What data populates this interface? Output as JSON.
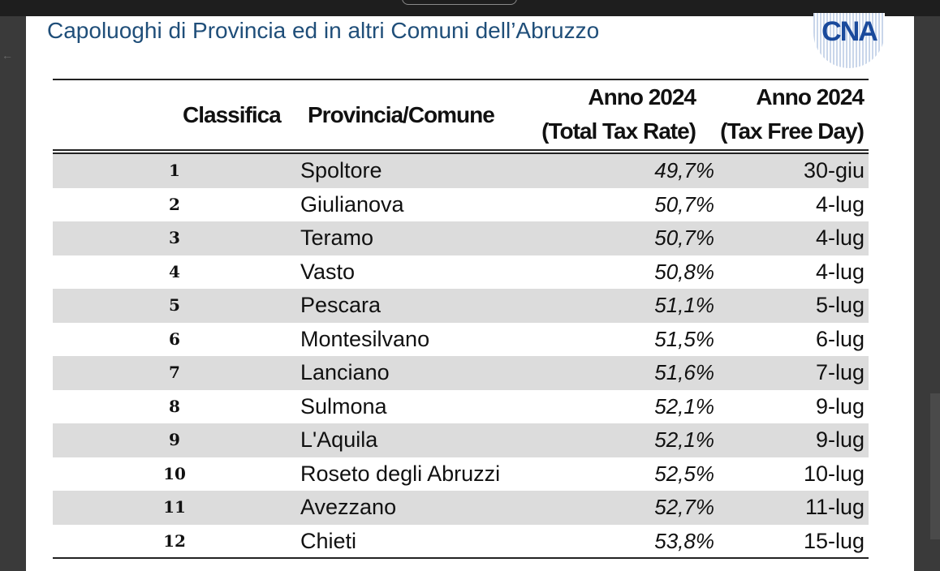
{
  "title": "Capoluoghi di Provincia ed in altri Comuni dell’Abruzzo",
  "logo_text": "CNA",
  "headers": {
    "rank": "Classifica",
    "name": "Provincia/Comune",
    "rate_line1": "Anno 2024",
    "rate_line2": "(Total Tax Rate)",
    "day_line1": "Anno 2024",
    "day_line2": "(Tax Free Day)"
  },
  "rows": [
    {
      "rank": "1",
      "name": "Spoltore",
      "rate": "49,7%",
      "day": "30-giu"
    },
    {
      "rank": "2",
      "name": "Giulianova",
      "rate": "50,7%",
      "day": "4-lug"
    },
    {
      "rank": "3",
      "name": "Teramo",
      "rate": "50,7%",
      "day": "4-lug"
    },
    {
      "rank": "4",
      "name": "Vasto",
      "rate": "50,8%",
      "day": "4-lug"
    },
    {
      "rank": "5",
      "name": "Pescara",
      "rate": "51,1%",
      "day": "5-lug"
    },
    {
      "rank": "6",
      "name": "Montesilvano",
      "rate": "51,5%",
      "day": "6-lug"
    },
    {
      "rank": "7",
      "name": "Lanciano",
      "rate": "51,6%",
      "day": "7-lug"
    },
    {
      "rank": "8",
      "name": "Sulmona",
      "rate": "52,1%",
      "day": "9-lug"
    },
    {
      "rank": "9",
      "name": "L'Aquila",
      "rate": "52,1%",
      "day": "9-lug"
    },
    {
      "rank": "10",
      "name": "Roseto degli Abruzzi",
      "rate": "52,5%",
      "day": "10-lug"
    },
    {
      "rank": "11",
      "name": "Avezzano",
      "rate": "52,7%",
      "day": "11-lug"
    },
    {
      "rank": "12",
      "name": "Chieti",
      "rate": "53,8%",
      "day": "15-lug"
    }
  ],
  "colors": {
    "title": "#1f4e79",
    "row_shade": "#dcdcdc",
    "logo": "#1a4a9c"
  }
}
